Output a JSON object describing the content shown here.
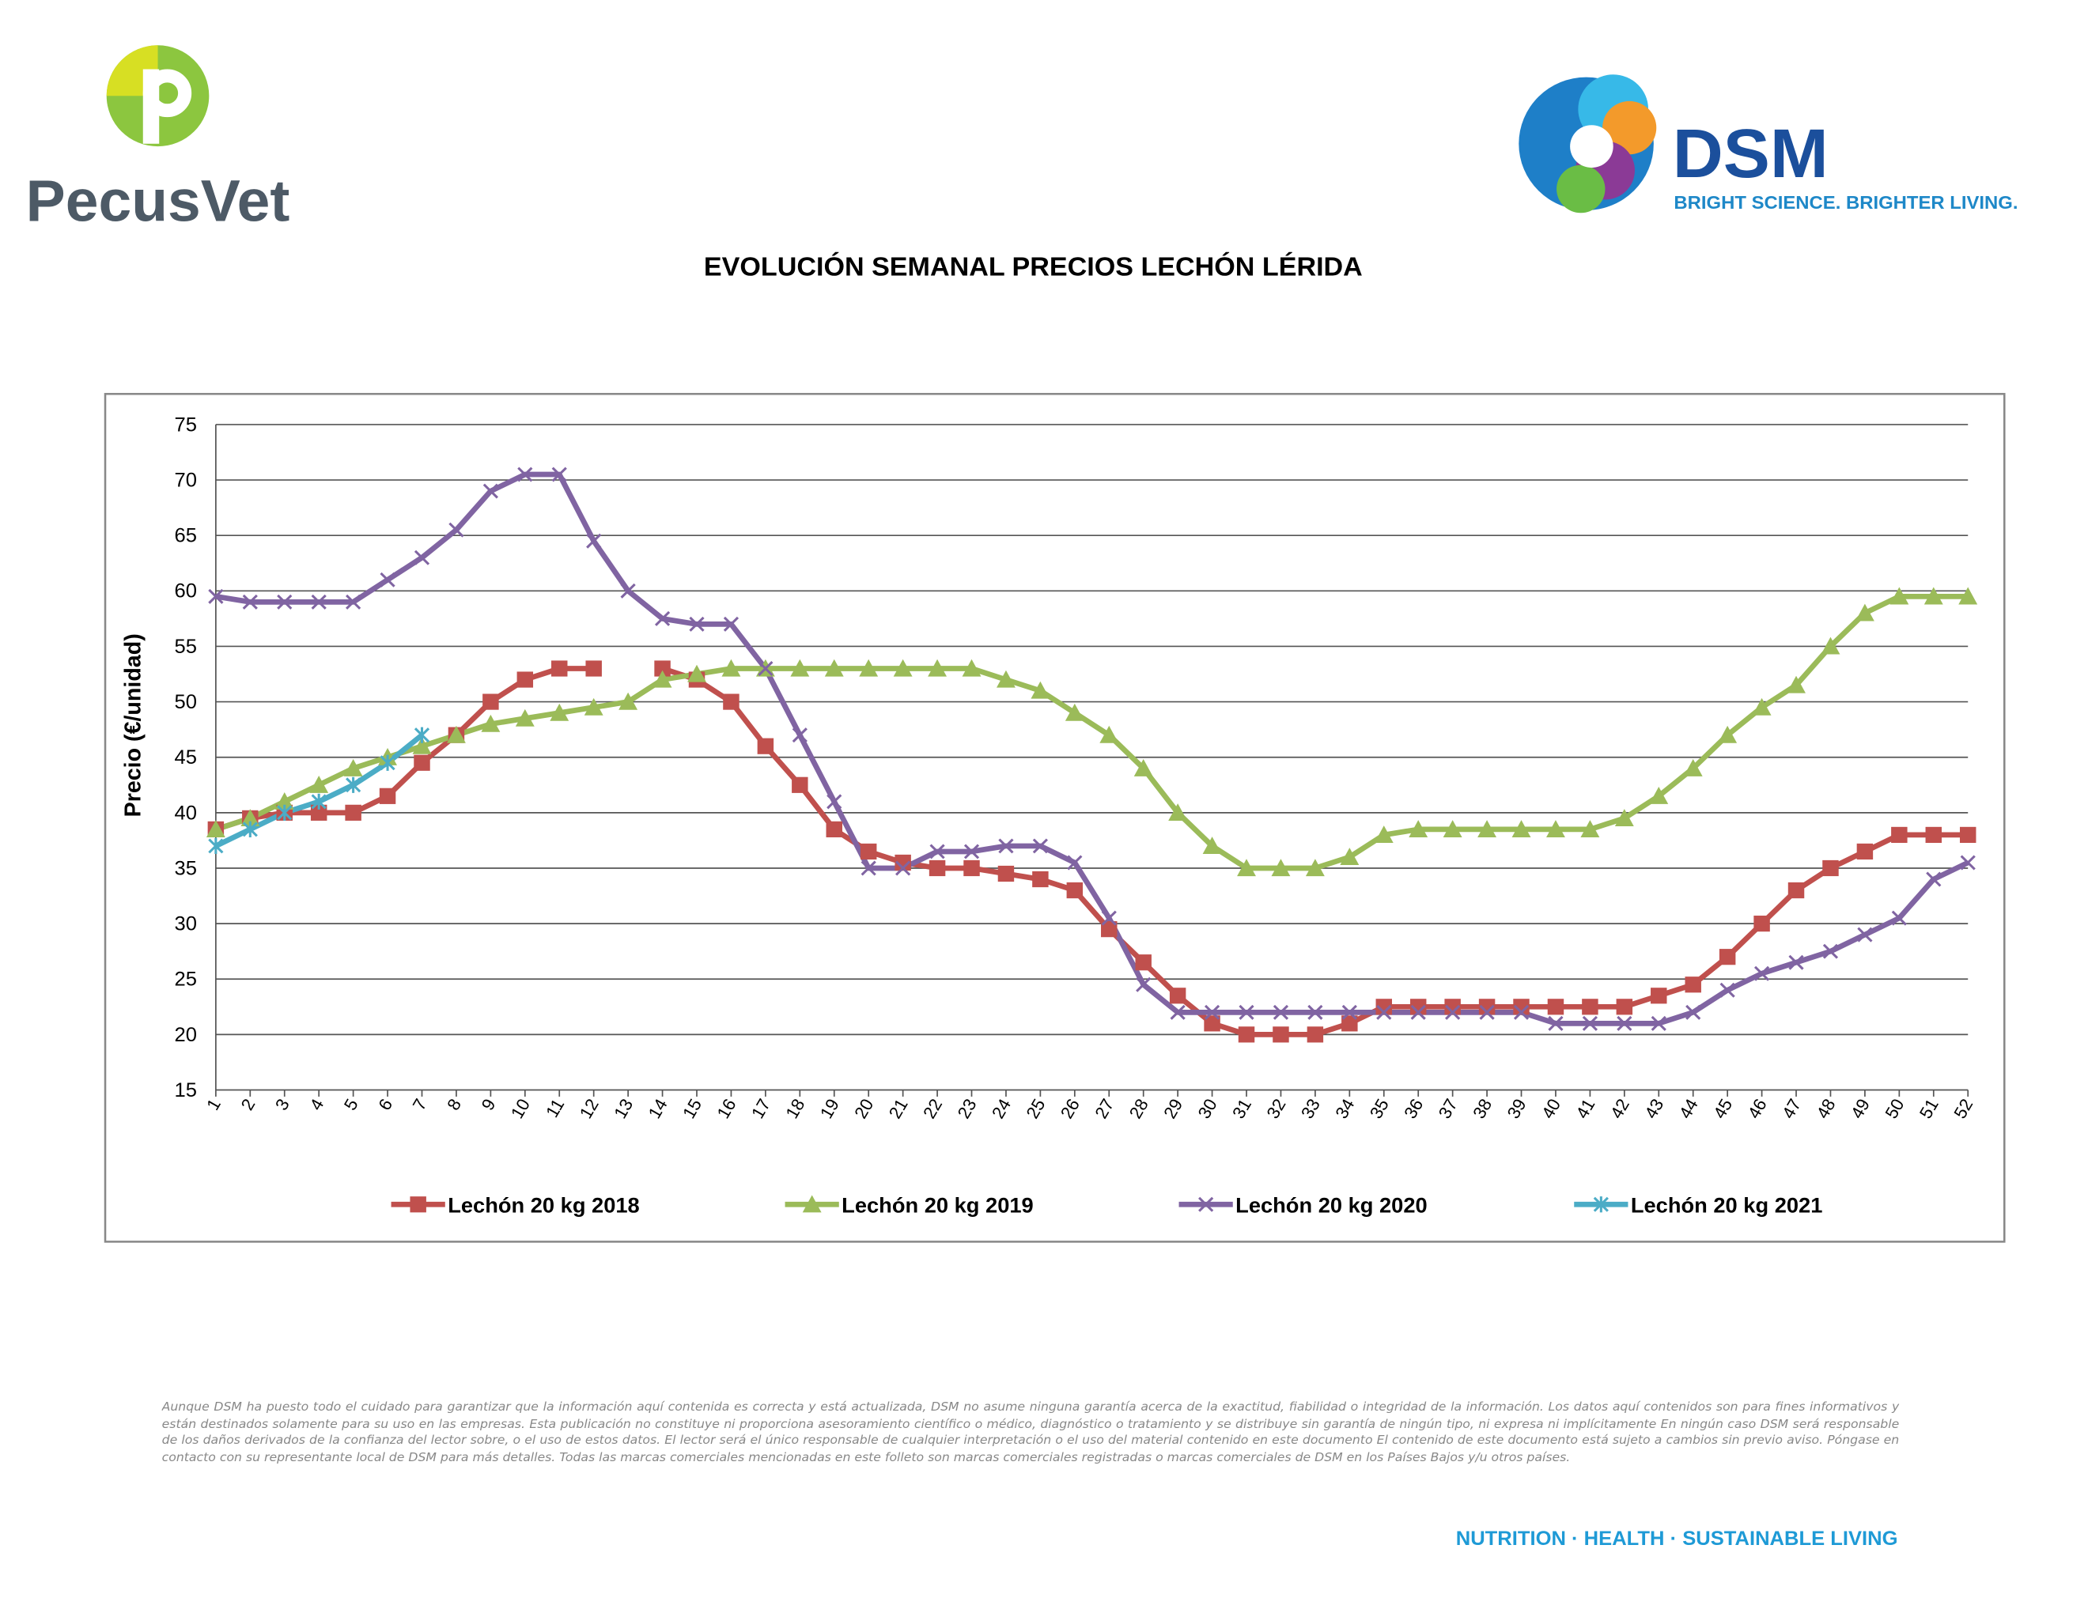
{
  "brand_left": "PecusVet",
  "brand_right": {
    "name": "DSM",
    "tagline": "BRIGHT SCIENCE. BRIGHTER LIVING."
  },
  "footer": {
    "disclaimer": "Aunque DSM ha puesto todo el cuidado para garantizar que la información aquí contenida es correcta y está actualizada, DSM no asume ninguna garantía acerca de la exactitud, fiabilidad o integridad de la información. Los datos aquí contenidos son para fines informativos y están destinados solamente para su uso en las empresas. Esta publicación no constituye ni proporciona asesoramiento científico o médico, diagnóstico o tratamiento y se distribuye sin garantía de ningún tipo, ni expresa ni implícitamente En ningún caso DSM será responsable de los daños derivados de la confianza del lector sobre, o el uso de estos datos. El lector será el único responsable de cualquier interpretación o el uso del material contenido en este documento El contenido de este documento está sujeto a cambios sin previo aviso. Póngase en contacto con su representante local de DSM para más detalles. Todas las marcas comerciales mencionadas en este folleto son marcas comerciales registradas o marcas comerciales de DSM en los Países Bajos y/u otros países.",
    "slogan": "NUTRITION · HEALTH · SUSTAINABLE LIVING"
  },
  "chart_data": {
    "type": "line",
    "title": "EVOLUCIÓN SEMANAL PRECIOS LECHÓN LÉRIDA",
    "y_label": "Precio (€/unidad)",
    "categories": [
      "1",
      "2",
      "3",
      "4",
      "5",
      "6",
      "7",
      "8",
      "9",
      "10",
      "11",
      "12",
      "13",
      "14",
      "15",
      "16",
      "17",
      "18",
      "19",
      "20",
      "21",
      "22",
      "23",
      "24",
      "25",
      "26",
      "27",
      "28",
      "29",
      "30",
      "31",
      "32",
      "33",
      "34",
      "35",
      "36",
      "37",
      "38",
      "39",
      "40",
      "41",
      "42",
      "43",
      "44",
      "45",
      "46",
      "47",
      "48",
      "49",
      "50",
      "51",
      "52"
    ],
    "ylim": [
      15,
      75
    ],
    "yticks": [
      15,
      20,
      25,
      30,
      35,
      40,
      45,
      50,
      55,
      60,
      65,
      70,
      75
    ],
    "grid": true,
    "legend": "bottom",
    "series": [
      {
        "name": "Lechón 20 kg 2018",
        "color": "#c0504d",
        "marker": "square",
        "values": [
          38.5,
          39.5,
          40,
          40,
          40,
          41.5,
          44.5,
          47,
          50,
          52,
          53,
          53,
          null,
          53,
          52,
          50,
          46,
          42.5,
          38.5,
          36.5,
          35.5,
          35,
          35,
          34.5,
          34,
          33,
          29.5,
          26.5,
          23.5,
          21,
          20,
          20,
          20,
          21,
          22.5,
          22.5,
          22.5,
          22.5,
          22.5,
          22.5,
          22.5,
          22.5,
          23.5,
          24.5,
          27,
          30,
          33,
          35,
          36.5,
          38,
          38,
          38
        ]
      },
      {
        "name": "Lechón 20 kg 2019",
        "color": "#9bbb59",
        "marker": "triangle",
        "values": [
          38.5,
          39.5,
          41,
          42.5,
          44,
          45,
          46,
          47,
          48,
          48.5,
          49,
          49.5,
          50,
          52,
          52.5,
          53,
          53,
          53,
          53,
          53,
          53,
          53,
          53,
          52,
          51,
          49,
          47,
          44,
          40,
          37,
          35,
          35,
          35,
          36,
          38,
          38.5,
          38.5,
          38.5,
          38.5,
          38.5,
          38.5,
          39.5,
          41.5,
          44,
          47,
          49.5,
          51.5,
          55,
          58,
          59.5,
          59.5,
          59.5
        ]
      },
      {
        "name": "Lechón 20 kg 2020",
        "color": "#8064a2",
        "marker": "x",
        "values": [
          59.5,
          59,
          59,
          59,
          59,
          61,
          63,
          65.5,
          69,
          70.5,
          70.5,
          64.5,
          60,
          57.5,
          57,
          57,
          53,
          47,
          41,
          35,
          35,
          36.5,
          36.5,
          37,
          37,
          35.5,
          30.5,
          24.5,
          22,
          22,
          22,
          22,
          22,
          22,
          22,
          22,
          22,
          22,
          22,
          21,
          21,
          21,
          21,
          22,
          24,
          25.5,
          26.5,
          27.5,
          29,
          30.5,
          34,
          35.5
        ]
      },
      {
        "name": "Lechón 20 kg 2021",
        "color": "#4bacc6",
        "marker": "star",
        "values": [
          37,
          38.5,
          40,
          41,
          42.5,
          44.5,
          47,
          null,
          null,
          null,
          null,
          null,
          null,
          null,
          null,
          null,
          null,
          null,
          null,
          null,
          null,
          null,
          null,
          null,
          null,
          null,
          null,
          null,
          null,
          null,
          null,
          null,
          null,
          null,
          null,
          null,
          null,
          null,
          null,
          null,
          null,
          null,
          null,
          null,
          null,
          null,
          null,
          null,
          null,
          null,
          null,
          null
        ]
      }
    ]
  }
}
